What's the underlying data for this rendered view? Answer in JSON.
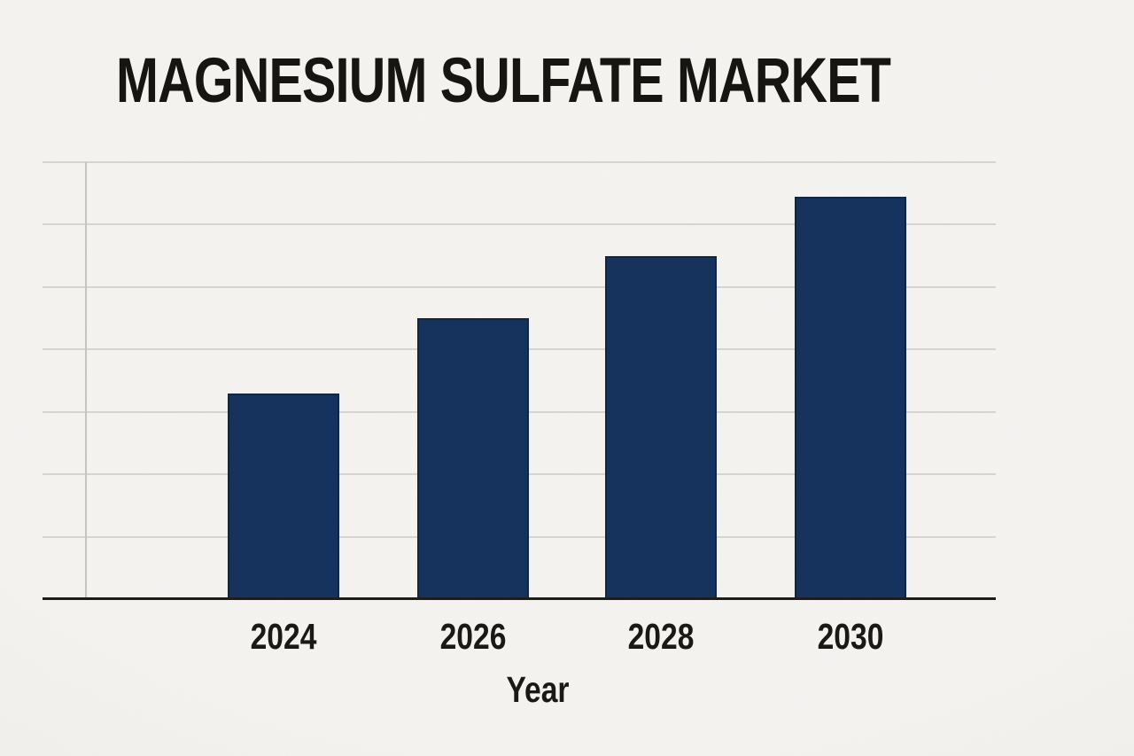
{
  "chart_data": {
    "type": "bar",
    "title": "MAGNESIUM SULFATE MARKET",
    "xlabel": "Year",
    "ylabel": "",
    "categories": [
      "2024",
      "2026",
      "2028",
      "2030"
    ],
    "values": [
      3.3,
      4.5,
      5.5,
      6.45
    ],
    "ylim": [
      0,
      7
    ],
    "y_tick_labels": [],
    "units": "unlabeled y-axis; values estimated in gridline units (1 unit per gridline, baseline = 0, top gridline = 7)",
    "grid": "horizontal",
    "legend": "none",
    "bar_color": "#16335e"
  },
  "colors": {
    "background": "#f5f3f0",
    "bar": "#16335e",
    "gridline": "#d6d4d1",
    "y_spine": "#c6c4c1",
    "x_axis": "#1e1d1a",
    "text": "#171512"
  }
}
